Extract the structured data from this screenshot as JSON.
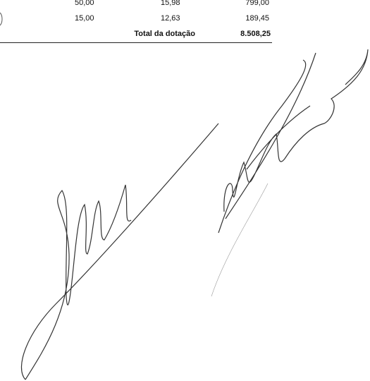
{
  "table": {
    "rows": [
      [
        "50,00",
        "15,98",
        "799,00"
      ],
      [
        "15,00",
        "12,63",
        "189,45"
      ]
    ],
    "total": {
      "label": "Total da dotação",
      "value": "8.508,25"
    }
  }
}
